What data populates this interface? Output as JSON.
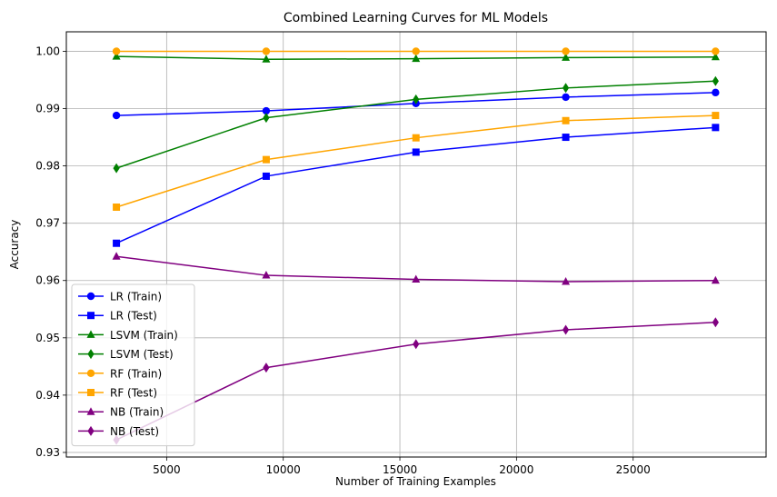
{
  "chart_data": {
    "type": "line",
    "title": "Combined Learning Curves for ML Models",
    "xlabel": "Number of Training Examples",
    "ylabel": "Accuracy",
    "x": [
      2846,
      9268,
      15689,
      22111,
      28532
    ],
    "xlim": [
      700,
      30700
    ],
    "ylim": [
      0.9292,
      1.0034
    ],
    "x_ticks": [
      5000,
      10000,
      15000,
      20000,
      25000
    ],
    "x_tick_labels": [
      "5000",
      "10000",
      "15000",
      "20000",
      "25000"
    ],
    "y_ticks": [
      0.93,
      0.94,
      0.95,
      0.96,
      0.97,
      0.98,
      0.99,
      1.0
    ],
    "y_tick_labels": [
      "0.93",
      "0.94",
      "0.95",
      "0.96",
      "0.97",
      "0.98",
      "0.99",
      "1.00"
    ],
    "grid": true,
    "legend_position": "lower-left",
    "series": [
      {
        "name": "LR (Train)",
        "color": "#0000ff",
        "marker": "circle",
        "values": [
          0.9888,
          0.9896,
          0.9909,
          0.992,
          0.9928
        ]
      },
      {
        "name": "LR (Test)",
        "color": "#0000ff",
        "marker": "square",
        "values": [
          0.9665,
          0.9782,
          0.9824,
          0.985,
          0.9867
        ]
      },
      {
        "name": "LSVM (Train)",
        "color": "#008000",
        "marker": "triangle",
        "values": [
          0.9991,
          0.9986,
          0.9987,
          0.9989,
          0.999
        ]
      },
      {
        "name": "LSVM (Test)",
        "color": "#008000",
        "marker": "diamond",
        "values": [
          0.9796,
          0.9884,
          0.9916,
          0.9936,
          0.9948
        ]
      },
      {
        "name": "RF (Train)",
        "color": "#ffa500",
        "marker": "circle",
        "values": [
          1.0,
          1.0,
          1.0,
          1.0,
          1.0
        ]
      },
      {
        "name": "RF (Test)",
        "color": "#ffa500",
        "marker": "square",
        "values": [
          0.9728,
          0.9811,
          0.9849,
          0.9879,
          0.9888
        ]
      },
      {
        "name": "NB (Train)",
        "color": "#800080",
        "marker": "triangle",
        "values": [
          0.9642,
          0.9609,
          0.9602,
          0.9598,
          0.96
        ]
      },
      {
        "name": "NB (Test)",
        "color": "#800080",
        "marker": "diamond",
        "values": [
          0.9322,
          0.9448,
          0.9489,
          0.9514,
          0.9527
        ]
      }
    ]
  }
}
